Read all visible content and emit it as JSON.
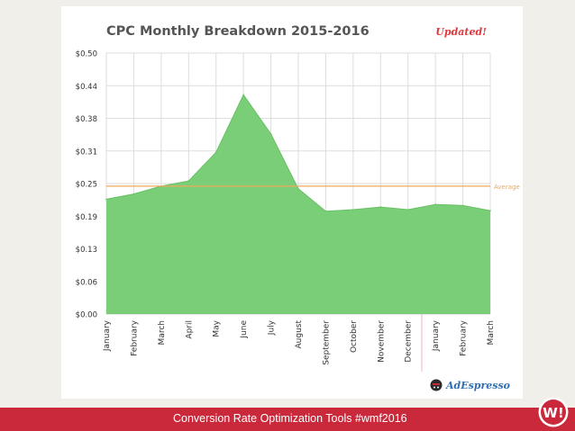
{
  "colors": {
    "area_fill": "#7ace77",
    "area_stroke": "#68c165",
    "average_line": "#f0a95b",
    "grid": "#dddddd",
    "footer_bar": "#c9293a",
    "divider": "#f2b3b8"
  },
  "chart_data": {
    "type": "area",
    "title": "CPC Monthly Breakdown 2015-2016",
    "badge": "Updated!",
    "categories": [
      "January",
      "February",
      "March",
      "April",
      "May",
      "June",
      "July",
      "August",
      "September",
      "October",
      "November",
      "December",
      "January",
      "February",
      "March"
    ],
    "values": [
      0.22,
      0.23,
      0.245,
      0.255,
      0.31,
      0.42,
      0.345,
      0.24,
      0.197,
      0.2,
      0.205,
      0.2,
      0.21,
      0.208,
      0.198
    ],
    "y_ticks": [
      {
        "value": 0.0,
        "label": "$0.00"
      },
      {
        "value": 0.0625,
        "label": "$0.06"
      },
      {
        "value": 0.125,
        "label": "$0.13"
      },
      {
        "value": 0.1875,
        "label": "$0.19"
      },
      {
        "value": 0.25,
        "label": "$0.25"
      },
      {
        "value": 0.3125,
        "label": "$0.31"
      },
      {
        "value": 0.375,
        "label": "$0.38"
      },
      {
        "value": 0.4375,
        "label": "$0.44"
      },
      {
        "value": 0.5,
        "label": "$0.50"
      }
    ],
    "ylim": [
      0,
      0.5
    ],
    "average": {
      "value": 0.245,
      "label": "Average"
    },
    "year_divider_after_index": 11,
    "grid": true
  },
  "logo": {
    "text": "AdEspresso",
    "icon": "adespresso-logo-icon"
  },
  "footer": {
    "text": "Conversion Rate Optimization Tools #wmf2016"
  },
  "corner_badge": {
    "text": "W!",
    "icon": "wmf-logo-icon"
  }
}
